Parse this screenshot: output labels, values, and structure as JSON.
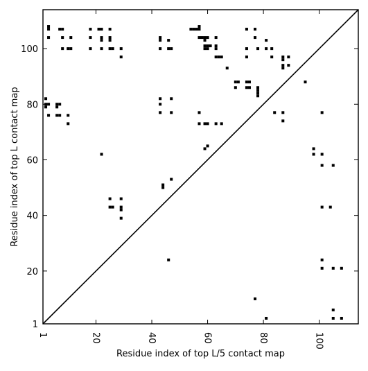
{
  "chart_data": {
    "type": "scatter",
    "title": "",
    "xlabel": "Residue index of top L/5 contact map",
    "ylabel": "Residue index of top L contact map",
    "xlim": [
      1,
      114
    ],
    "ylim": [
      1,
      114
    ],
    "x_ticks": [
      1,
      20,
      40,
      60,
      80,
      100
    ],
    "y_ticks": [
      1,
      20,
      40,
      60,
      80,
      100
    ],
    "x_tick_labels": [
      "1",
      "20",
      "40",
      "60",
      "80",
      "100"
    ],
    "y_tick_labels": [
      "1",
      "20",
      "40",
      "60",
      "80",
      "100"
    ],
    "x_tick_label_rotation_deg": 90,
    "grid": false,
    "legend": "none",
    "diagonal_line": true,
    "marker_color": "#000000",
    "series": [
      {
        "points_top_L": [
          [
            3,
            108
          ],
          [
            3,
            107
          ],
          [
            3,
            104
          ],
          [
            7,
            107
          ],
          [
            8,
            107
          ],
          [
            8,
            104
          ],
          [
            11,
            104
          ],
          [
            8,
            100
          ],
          [
            11,
            100
          ],
          [
            10,
            100
          ],
          [
            18,
            107
          ],
          [
            18,
            104
          ],
          [
            18,
            100
          ],
          [
            21,
            107
          ],
          [
            22,
            107
          ],
          [
            22,
            104
          ],
          [
            22,
            103
          ],
          [
            22,
            100
          ],
          [
            25,
            107
          ],
          [
            25,
            104
          ],
          [
            25,
            103
          ],
          [
            25,
            100
          ],
          [
            26,
            100
          ],
          [
            29,
            100
          ],
          [
            29,
            97
          ],
          [
            43,
            104
          ],
          [
            43,
            103
          ],
          [
            43,
            100
          ],
          [
            46,
            103
          ],
          [
            46,
            100
          ],
          [
            47,
            100
          ],
          [
            54,
            107
          ],
          [
            55,
            107
          ],
          [
            56,
            107
          ],
          [
            57,
            108
          ],
          [
            57,
            107
          ],
          [
            57,
            104
          ],
          [
            58,
            104
          ],
          [
            59,
            104
          ],
          [
            59,
            103
          ],
          [
            60,
            104
          ],
          [
            59,
            101
          ],
          [
            60,
            101
          ],
          [
            61,
            101
          ],
          [
            59,
            100
          ],
          [
            60,
            100
          ],
          [
            63,
            104
          ],
          [
            63,
            101
          ],
          [
            63,
            100
          ],
          [
            63,
            97
          ],
          [
            64,
            97
          ],
          [
            65,
            97
          ],
          [
            67,
            93
          ],
          [
            70,
            88
          ],
          [
            71,
            88
          ],
          [
            70,
            86
          ],
          [
            74,
            88
          ],
          [
            75,
            88
          ],
          [
            74,
            86
          ],
          [
            75,
            86
          ],
          [
            74,
            107
          ],
          [
            74,
            100
          ],
          [
            74,
            97
          ],
          [
            77,
            107
          ],
          [
            77,
            104
          ],
          [
            78,
            100
          ],
          [
            78,
            86
          ],
          [
            78,
            85
          ],
          [
            78,
            84
          ],
          [
            78,
            83
          ],
          [
            81,
            103
          ],
          [
            81,
            100
          ],
          [
            83,
            100
          ],
          [
            83,
            97
          ],
          [
            87,
            97
          ],
          [
            87,
            96
          ],
          [
            87,
            94
          ],
          [
            87,
            93
          ],
          [
            89,
            97
          ],
          [
            89,
            94
          ],
          [
            95,
            88
          ],
          [
            2,
            82
          ],
          [
            2,
            80
          ],
          [
            3,
            80
          ],
          [
            2,
            79
          ],
          [
            6,
            80
          ],
          [
            7,
            80
          ],
          [
            6,
            79
          ],
          [
            3,
            76
          ],
          [
            6,
            76
          ],
          [
            7,
            76
          ],
          [
            10,
            76
          ],
          [
            10,
            73
          ],
          [
            43,
            82
          ],
          [
            43,
            80
          ],
          [
            43,
            77
          ],
          [
            47,
            82
          ],
          [
            47,
            77
          ],
          [
            57,
            77
          ],
          [
            57,
            73
          ],
          [
            59,
            73
          ],
          [
            60,
            73
          ],
          [
            59,
            64
          ],
          [
            60,
            65
          ],
          [
            63,
            73
          ],
          [
            65,
            73
          ],
          [
            84,
            77
          ],
          [
            87,
            77
          ],
          [
            87,
            74
          ],
          [
            101,
            77
          ],
          [
            98,
            64
          ],
          [
            98,
            62
          ],
          [
            101,
            62
          ],
          [
            101,
            58
          ],
          [
            105,
            58
          ],
          [
            101,
            43
          ],
          [
            104,
            43
          ],
          [
            101,
            24
          ],
          [
            101,
            21
          ],
          [
            105,
            21
          ],
          [
            108,
            21
          ],
          [
            22,
            62
          ],
          [
            25,
            46
          ],
          [
            25,
            43
          ],
          [
            26,
            43
          ],
          [
            29,
            46
          ],
          [
            29,
            43
          ],
          [
            29,
            42
          ],
          [
            29,
            39
          ],
          [
            44,
            51
          ],
          [
            44,
            50
          ],
          [
            47,
            53
          ],
          [
            46,
            24
          ],
          [
            77,
            10
          ],
          [
            81,
            3
          ],
          [
            105,
            6
          ],
          [
            105,
            3
          ],
          [
            108,
            3
          ]
        ]
      }
    ]
  }
}
